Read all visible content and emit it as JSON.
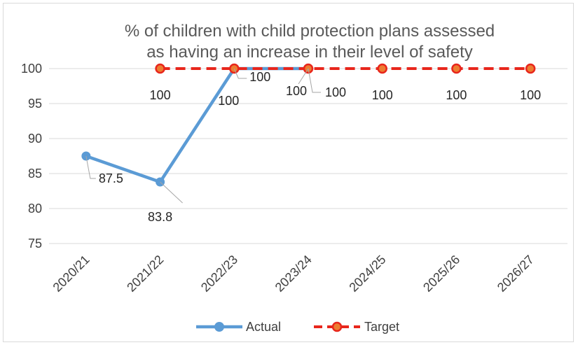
{
  "chart_data": {
    "type": "line",
    "title_lines": [
      "% of children with child protection plans assessed",
      "as having an increase in their level of safety"
    ],
    "categories": [
      "2020/21",
      "2021/22",
      "2022/23",
      "2023/24",
      "2024/25",
      "2025/26",
      "2026/27"
    ],
    "yticks": [
      "75",
      "80",
      "85",
      "90",
      "95",
      "100"
    ],
    "ylim": [
      75,
      100
    ],
    "grid": "horizontal",
    "legend_position": "bottom",
    "series": [
      {
        "name": "Actual",
        "values": [
          87.5,
          83.8,
          100,
          100,
          null,
          null,
          null
        ],
        "labels": [
          "87.5",
          "83.8",
          "100",
          "100",
          null,
          null,
          null
        ],
        "color": "#5b9bd5",
        "style": "solid"
      },
      {
        "name": "Target",
        "values": [
          null,
          100,
          100,
          100,
          100,
          100,
          100
        ],
        "labels": [
          null,
          "100",
          "100",
          "100",
          "100",
          "100",
          "100"
        ],
        "color": "#e8261c",
        "marker_color": "#ed7d31",
        "style": "dashed"
      }
    ]
  }
}
